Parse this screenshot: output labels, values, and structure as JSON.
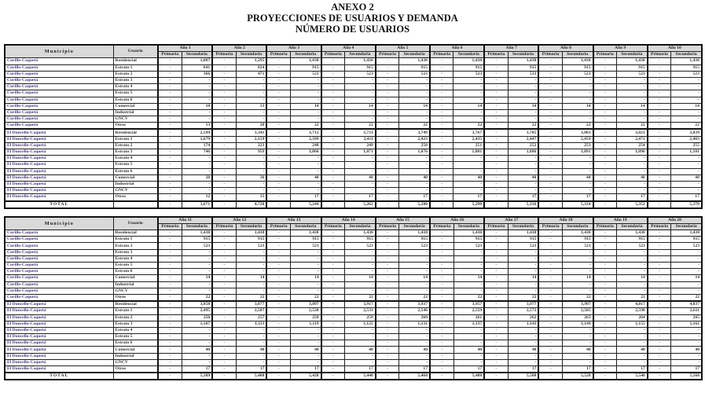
{
  "document": {
    "title1": "ANEXO 2",
    "title2": "PROYECCIONES DE USUARIOS Y DEMANDA",
    "title3": "NÚMERO DE USUARIOS"
  },
  "headers": {
    "municipio": "Municipio",
    "usuario": "Usuario",
    "primaria": "Primaria",
    "secundaria": "Secundaria",
    "total": "TOTAL"
  },
  "tables": [
    {
      "years": [
        "Año 1",
        "Año 2",
        "Año 3",
        "Año 4",
        "Año 5",
        "Año 6",
        "Año 7",
        "Año 8",
        "Año 9",
        "Año 10"
      ],
      "rows": [
        {
          "municipio": "Curillo-Caquetá",
          "usuario": "Residencial",
          "s": [
            "1,007",
            "1,295",
            "1,438",
            "1,438",
            "1,438",
            "1,438",
            "1,438",
            "1,438",
            "1,438",
            "1,438"
          ]
        },
        {
          "municipio": "Curillo-Caquetá",
          "usuario": "Estrato 1",
          "s": [
            "641",
            "824",
            "915",
            "915",
            "915",
            "915",
            "915",
            "915",
            "915",
            "915"
          ]
        },
        {
          "municipio": "Curillo-Caquetá",
          "usuario": "Estrato 2",
          "s": [
            "366",
            "471",
            "523",
            "523",
            "523",
            "523",
            "523",
            "523",
            "523",
            "523"
          ]
        },
        {
          "municipio": "Curillo-Caquetá",
          "usuario": "Estrato 3",
          "s": [
            "-",
            "-",
            "-",
            "-",
            "-",
            "-",
            "-",
            "-",
            "-",
            "-"
          ]
        },
        {
          "municipio": "Curillo-Caquetá",
          "usuario": "Estrato 4",
          "s": [
            "-",
            "-",
            "-",
            "-",
            "-",
            "-",
            "-",
            "-",
            "-",
            "-"
          ]
        },
        {
          "municipio": "Curillo-Caquetá",
          "usuario": "Estrato 5",
          "s": [
            "-",
            "-",
            "-",
            "-",
            "-",
            "-",
            "-",
            "-",
            "-",
            "-"
          ]
        },
        {
          "municipio": "Curillo-Caquetá",
          "usuario": "Estrato 6",
          "s": [
            "-",
            "-",
            "-",
            "-",
            "-",
            "-",
            "-",
            "-",
            "-",
            "-"
          ]
        },
        {
          "municipio": "Curillo-Caquetá",
          "usuario": "Comercial",
          "s": [
            "10",
            "13",
            "14",
            "14",
            "14",
            "14",
            "14",
            "14",
            "14",
            "14"
          ]
        },
        {
          "municipio": "Curillo-Caquetá",
          "usuario": "Industrial",
          "s": [
            "-",
            "-",
            "-",
            "-",
            "-",
            "-",
            "-",
            "-",
            "-",
            "-"
          ]
        },
        {
          "municipio": "Curillo-Caquetá",
          "usuario": "GNCV",
          "s": [
            "-",
            "-",
            "-",
            "-",
            "-",
            "-",
            "-",
            "-",
            "-",
            "-"
          ]
        },
        {
          "municipio": "Curillo-Caquetá",
          "usuario": "Otros",
          "s": [
            "13",
            "20",
            "22",
            "22",
            "22",
            "22",
            "22",
            "22",
            "22",
            "22"
          ]
        },
        {
          "municipio": "El Doncello-Caquetá",
          "usuario": "Residencial",
          "s": [
            "2,599",
            "3,341",
            "3,712",
            "3,731",
            "3,749",
            "3,767",
            "3,785",
            "3,803",
            "3,821",
            "3,839"
          ]
        },
        {
          "municipio": "El Doncello-Caquetá",
          "usuario": "Estrato 1",
          "s": [
            "1,679",
            "2,159",
            "2,399",
            "2,411",
            "2,423",
            "2,435",
            "2,447",
            "2,459",
            "2,471",
            "2,483"
          ]
        },
        {
          "municipio": "El Doncello-Caquetá",
          "usuario": "Estrato 2",
          "s": [
            "174",
            "223",
            "248",
            "249",
            "250",
            "251",
            "252",
            "253",
            "254",
            "255"
          ]
        },
        {
          "municipio": "El Doncello-Caquetá",
          "usuario": "Estrato 3",
          "s": [
            "746",
            "959",
            "1,066",
            "1,071",
            "1,076",
            "1,081",
            "1,086",
            "1,091",
            "1,096",
            "1,101"
          ]
        },
        {
          "municipio": "El Doncello-Caquetá",
          "usuario": "Estrato 4",
          "s": [
            "-",
            "-",
            "-",
            "-",
            "-",
            "-",
            "-",
            "-",
            "-",
            "-"
          ]
        },
        {
          "municipio": "El Doncello-Caquetá",
          "usuario": "Estrato 5",
          "s": [
            "-",
            "-",
            "-",
            "-",
            "-",
            "-",
            "-",
            "-",
            "-",
            "-"
          ]
        },
        {
          "municipio": "El Doncello-Caquetá",
          "usuario": "Estrato 6",
          "s": [
            "-",
            "-",
            "-",
            "-",
            "-",
            "-",
            "-",
            "-",
            "-",
            "-"
          ]
        },
        {
          "municipio": "El Doncello-Caquetá",
          "usuario": "Comercial",
          "s": [
            "28",
            "36",
            "40",
            "40",
            "40",
            "40",
            "40",
            "40",
            "40",
            "40"
          ]
        },
        {
          "municipio": "El Doncello-Caquetá",
          "usuario": "Industrial",
          "s": [
            "-",
            "-",
            "-",
            "-",
            "-",
            "-",
            "-",
            "-",
            "-",
            "-"
          ]
        },
        {
          "municipio": "El Doncello-Caquetá",
          "usuario": "GNCV",
          "s": [
            "-",
            "-",
            "-",
            "-",
            "-",
            "-",
            "-",
            "-",
            "-",
            "-"
          ]
        },
        {
          "municipio": "El Doncello-Caquetá",
          "usuario": "Otros",
          "s": [
            "12",
            "15",
            "17",
            "17",
            "17",
            "17",
            "17",
            "17",
            "17",
            "17"
          ]
        }
      ],
      "total": [
        "3,671",
        "4,720",
        "5,244",
        "5,262",
        "5,280",
        "5,298",
        "5,316",
        "5,334",
        "5,352",
        "5,370"
      ]
    },
    {
      "years": [
        "Año 11",
        "Año 12",
        "Año 13",
        "Año 14",
        "Año 15",
        "Año 16",
        "Año 17",
        "Año 18",
        "Año 19",
        "Año 20"
      ],
      "rows": [
        {
          "municipio": "Curillo-Caquetá",
          "usuario": "Residencial",
          "s": [
            "1,438",
            "1,438",
            "1,438",
            "1,438",
            "1,438",
            "1,438",
            "1,438",
            "1,438",
            "1,438",
            "1,438"
          ]
        },
        {
          "municipio": "Curillo-Caquetá",
          "usuario": "Estrato 1",
          "s": [
            "915",
            "915",
            "915",
            "915",
            "915",
            "915",
            "915",
            "915",
            "915",
            "915"
          ]
        },
        {
          "municipio": "Curillo-Caquetá",
          "usuario": "Estrato 2",
          "s": [
            "523",
            "523",
            "523",
            "523",
            "523",
            "523",
            "523",
            "523",
            "523",
            "523"
          ]
        },
        {
          "municipio": "Curillo-Caquetá",
          "usuario": "Estrato 3",
          "s": [
            "-",
            "-",
            "-",
            "-",
            "-",
            "-",
            "-",
            "-",
            "-",
            "-"
          ]
        },
        {
          "municipio": "Curillo-Caquetá",
          "usuario": "Estrato 4",
          "s": [
            "-",
            "-",
            "-",
            "-",
            "-",
            "-",
            "-",
            "-",
            "-",
            "-"
          ]
        },
        {
          "municipio": "Curillo-Caquetá",
          "usuario": "Estrato 5",
          "s": [
            "-",
            "-",
            "-",
            "-",
            "-",
            "-",
            "-",
            "-",
            "-",
            "-"
          ]
        },
        {
          "municipio": "Curillo-Caquetá",
          "usuario": "Estrato 6",
          "s": [
            "-",
            "-",
            "-",
            "-",
            "-",
            "-",
            "-",
            "-",
            "-",
            "-"
          ]
        },
        {
          "municipio": "Curillo-Caquetá",
          "usuario": "Comercial",
          "s": [
            "14",
            "14",
            "14",
            "14",
            "14",
            "14",
            "14",
            "14",
            "14",
            "14"
          ]
        },
        {
          "municipio": "Curillo-Caquetá",
          "usuario": "Industrial",
          "s": [
            "-",
            "-",
            "-",
            "-",
            "-",
            "-",
            "-",
            "-",
            "-",
            "-"
          ]
        },
        {
          "municipio": "Curillo-Caquetá",
          "usuario": "GNCV",
          "s": [
            "-",
            "-",
            "-",
            "-",
            "-",
            "-",
            "-",
            "-",
            "-",
            "-"
          ]
        },
        {
          "municipio": "Curillo-Caquetá",
          "usuario": "Otros",
          "s": [
            "22",
            "22",
            "22",
            "22",
            "22",
            "22",
            "22",
            "22",
            "22",
            "22"
          ]
        },
        {
          "municipio": "El Doncello-Caquetá",
          "usuario": "Residencial",
          "s": [
            "3,858",
            "3,877",
            "3,897",
            "3,917",
            "3,937",
            "3,957",
            "3,977",
            "3,997",
            "4,017",
            "4,037"
          ]
        },
        {
          "municipio": "El Doncello-Caquetá",
          "usuario": "Estrato 1",
          "s": [
            "2,495",
            "2,507",
            "2,520",
            "2,533",
            "2,546",
            "2,559",
            "2,572",
            "2,585",
            "2,598",
            "2,611"
          ]
        },
        {
          "municipio": "El Doncello-Caquetá",
          "usuario": "Estrato 2",
          "s": [
            "256",
            "257",
            "258",
            "259",
            "260",
            "261",
            "262",
            "263",
            "264",
            "265"
          ]
        },
        {
          "municipio": "El Doncello-Caquetá",
          "usuario": "Estrato 3",
          "s": [
            "1,107",
            "1,113",
            "1,119",
            "1,125",
            "1,131",
            "1,137",
            "1,143",
            "1,149",
            "1,155",
            "1,161"
          ]
        },
        {
          "municipio": "El Doncello-Caquetá",
          "usuario": "Estrato 4",
          "s": [
            "-",
            "-",
            "-",
            "-",
            "-",
            "-",
            "-",
            "-",
            "-",
            "-"
          ]
        },
        {
          "municipio": "El Doncello-Caquetá",
          "usuario": "Estrato 5",
          "s": [
            "-",
            "-",
            "-",
            "-",
            "-",
            "-",
            "-",
            "-",
            "-",
            "-"
          ]
        },
        {
          "municipio": "El Doncello-Caquetá",
          "usuario": "Estrato 6",
          "s": [
            "-",
            "-",
            "-",
            "-",
            "-",
            "-",
            "-",
            "-",
            "-",
            "-"
          ]
        },
        {
          "municipio": "El Doncello-Caquetá",
          "usuario": "Comercial",
          "s": [
            "40",
            "40",
            "40",
            "40",
            "40",
            "40",
            "40",
            "40",
            "40",
            "40"
          ]
        },
        {
          "municipio": "El Doncello-Caquetá",
          "usuario": "Industrial",
          "s": [
            "-",
            "-",
            "-",
            "-",
            "-",
            "-",
            "-",
            "-",
            "-",
            "-"
          ]
        },
        {
          "municipio": "El Doncello-Caquetá",
          "usuario": "GNCV",
          "s": [
            "-",
            "-",
            "-",
            "-",
            "-",
            "-",
            "-",
            "-",
            "-",
            "-"
          ]
        },
        {
          "municipio": "El Doncello-Caquetá",
          "usuario": "Otros",
          "s": [
            "17",
            "17",
            "17",
            "17",
            "17",
            "17",
            "17",
            "17",
            "17",
            "17"
          ]
        }
      ],
      "total": [
        "5,389",
        "5,408",
        "5,428",
        "5,448",
        "5,468",
        "5,488",
        "5,508",
        "5,528",
        "5,548",
        "5,568"
      ]
    }
  ],
  "primaria_value": "-"
}
